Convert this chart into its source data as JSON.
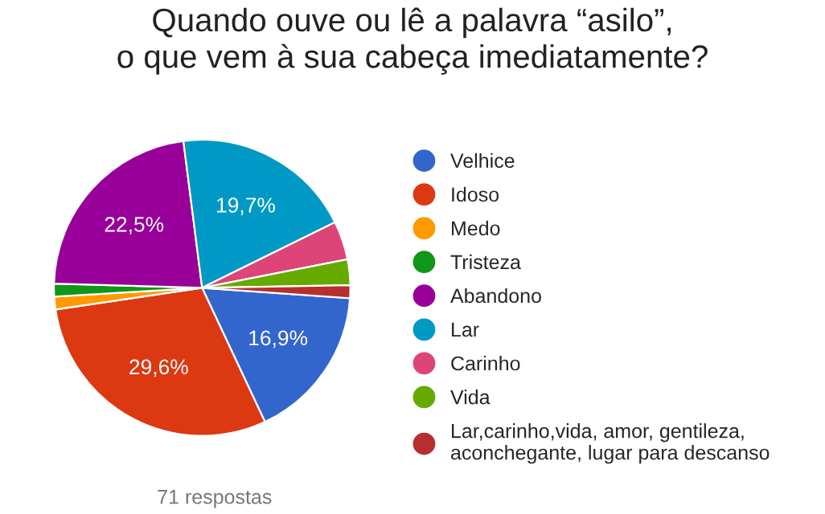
{
  "chart_data": {
    "type": "pie",
    "title": "Quando ouve ou lê a palavra “asilo”,\no que vem à sua cabeça imediatamente?",
    "categories": [
      "Velhice",
      "Idoso",
      "Medo",
      "Tristeza",
      "Abandono",
      "Lar",
      "Carinho",
      "Vida",
      "Lar,carinho,vida, amor, gentileza,\naconchegante, lugar para descanso"
    ],
    "values": [
      16.9,
      29.6,
      1.4,
      1.4,
      22.5,
      19.7,
      4.2,
      2.8,
      1.4
    ],
    "value_labels": [
      "16,9%",
      "29,6%",
      null,
      null,
      "22,5%",
      "19,7%",
      null,
      null,
      null
    ],
    "colors": [
      "#3366cc",
      "#dc3912",
      "#ff9900",
      "#109618",
      "#990099",
      "#0099c6",
      "#dd4477",
      "#66aa00",
      "#b82e2e"
    ],
    "legend": "right",
    "annotations": [
      "71 respostas"
    ]
  }
}
